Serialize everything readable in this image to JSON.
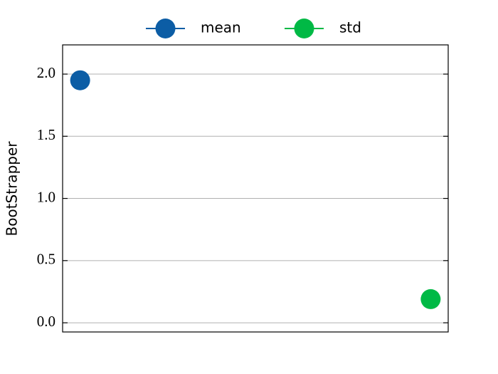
{
  "chart_data": {
    "type": "line",
    "y_label": "BootStrapper",
    "x": [
      0,
      1
    ],
    "xlim": [
      -0.05,
      1.05
    ],
    "series": [
      {
        "name": "mean",
        "color": "#0C5DA5",
        "values": [
          1.95,
          null
        ]
      },
      {
        "name": "std",
        "color": "#00B945",
        "values": [
          null,
          0.19
        ]
      }
    ],
    "ylim": [
      -0.074,
      2.235
    ],
    "yticks": [
      {
        "value": 0,
        "label": "0.0"
      },
      {
        "value": 0.5,
        "label": "0.5"
      },
      {
        "value": 1,
        "label": "1.0"
      },
      {
        "value": 1.5,
        "label": "1.5"
      },
      {
        "value": 2,
        "label": "2.0"
      }
    ],
    "grid": true,
    "legend": "top"
  }
}
